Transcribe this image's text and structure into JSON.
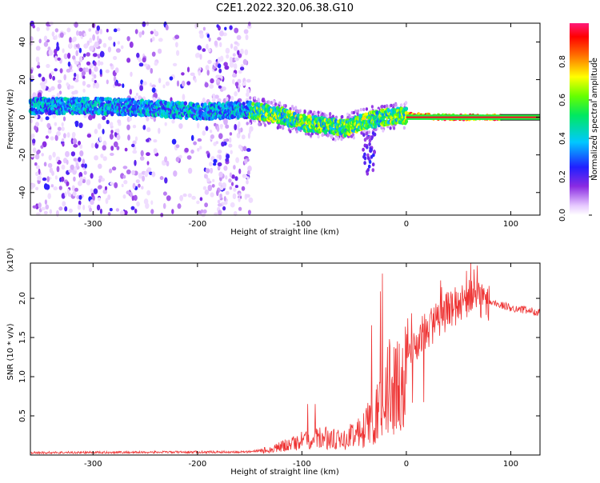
{
  "title": "C2E1.2022.320.06.38.G10",
  "chart_data": [
    {
      "type": "heatmap",
      "xlabel": "Height of straight line (km)",
      "ylabel": "Frequency (Hz)",
      "xlim": [
        -360,
        128
      ],
      "ylim": [
        -52,
        50
      ],
      "x_ticks": [
        -300,
        -200,
        -100,
        0,
        100
      ],
      "x_tick_labels": [
        "-300",
        "-200",
        "-100",
        "0",
        "100"
      ],
      "y_ticks": [
        -40,
        -20,
        0,
        20,
        40
      ],
      "y_tick_labels": [
        "-40",
        "-20",
        "0",
        "20",
        "40"
      ],
      "colorbar": {
        "label": "Normalized spectral amplitude",
        "range": [
          0,
          1
        ],
        "ticks": [
          0.0,
          0.2,
          0.4,
          0.6,
          0.8
        ],
        "tick_labels": [
          "0.0",
          "0.2",
          "0.4",
          "0.6",
          "0.8"
        ],
        "colormap": "rainbow (white-purple-blue-cyan-green-yellow-red-magenta)"
      },
      "ridge": {
        "x": [
          -355,
          -300,
          -250,
          -200,
          -150,
          -120,
          -100,
          -80,
          -60,
          -40,
          -20,
          0,
          40,
          90,
          128
        ],
        "y": [
          6,
          6,
          5,
          3,
          4,
          1,
          -3,
          -4,
          -6,
          -2,
          0,
          1,
          0,
          0,
          0
        ]
      },
      "grid": false
    },
    {
      "type": "line",
      "xlabel": "Height of straight line (km)",
      "ylabel": "SNR (10 * v/v)",
      "y_scale_label": "(x10⁴)",
      "xlim": [
        -360,
        128
      ],
      "ylim": [
        0,
        2.45
      ],
      "x_ticks": [
        -300,
        -200,
        -100,
        0,
        100
      ],
      "x_tick_labels": [
        "-300",
        "-200",
        "-100",
        "0",
        "100"
      ],
      "y_ticks": [
        0.5,
        1.0,
        1.5,
        2.0
      ],
      "y_tick_labels": [
        "0.5",
        "1.0",
        "1.5",
        "2.0"
      ],
      "series_color": "#ee3333",
      "envelope": {
        "x": [
          -360,
          -150,
          -130,
          -100,
          -80,
          -60,
          -40,
          -25,
          -15,
          0,
          20,
          40,
          60,
          80,
          100,
          128
        ],
        "y": [
          0.03,
          0.04,
          0.08,
          0.2,
          0.25,
          0.2,
          0.45,
          0.8,
          1.2,
          1.3,
          1.6,
          1.85,
          2.0,
          1.95,
          1.88,
          1.82
        ]
      },
      "grid": false
    }
  ]
}
